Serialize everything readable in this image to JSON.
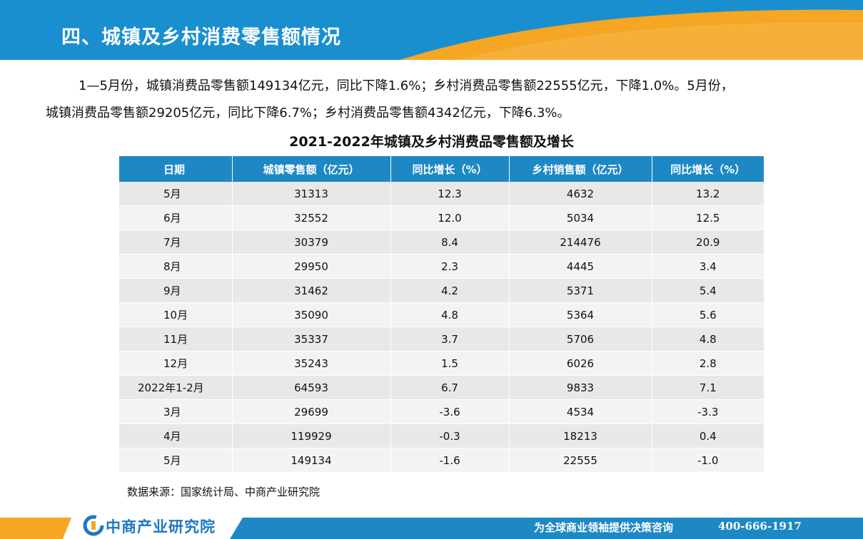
{
  "header": {
    "title": "四、城镇及乡村消费零售额情况"
  },
  "intro": {
    "paragraph1": "1—5月份，城镇消费品零售额149134亿元，同比下降1.6%；乡村消费品零售额22555亿元，下降1.0%。5月份，",
    "paragraph2": "城镇消费品零售额29205亿元，同比下降6.7%；乡村消费品零售额4342亿元，下降6.3%。"
  },
  "table": {
    "title": "2021-2022年城镇及乡村消费品零售额及增长",
    "headers": [
      "日期",
      "城镇零售额（亿元）",
      "同比增长（%）",
      "乡村销售额（亿元）",
      "同比增长（%）"
    ],
    "rows": [
      [
        "5月",
        "31313",
        "12.3",
        "4632",
        "13.2"
      ],
      [
        "6月",
        "32552",
        "12.0",
        "5034",
        "12.5"
      ],
      [
        "7月",
        "30379",
        "8.4",
        "214476",
        "20.9"
      ],
      [
        "8月",
        "29950",
        "2.3",
        "4445",
        "3.4"
      ],
      [
        "9月",
        "31462",
        "4.2",
        "5371",
        "5.4"
      ],
      [
        "10月",
        "35090",
        "4.8",
        "5364",
        "5.6"
      ],
      [
        "11月",
        "35337",
        "3.7",
        "5706",
        "4.8"
      ],
      [
        "12月",
        "35243",
        "1.5",
        "6026",
        "2.8"
      ],
      [
        "2022年1-2月",
        "64593",
        "6.7",
        "9833",
        "7.1"
      ],
      [
        "3月",
        "29699",
        "-3.6",
        "4534",
        "-3.3"
      ],
      [
        "4月",
        "119929",
        "-0.3",
        "18213",
        "0.4"
      ],
      [
        "5月",
        "149134",
        "-1.6",
        "22555",
        "-1.0"
      ]
    ]
  },
  "source": "数据来源：国家统计局、中商产业研究院",
  "footer": {
    "logo_text": "中商产业研究院",
    "slogan": "为全球商业领袖提供决策咨询",
    "phone": "400-666-1917"
  },
  "colors": {
    "primary_blue": "#1e88c4",
    "accent_orange": "#f5a623",
    "header_blue": "#1a8fd0"
  }
}
